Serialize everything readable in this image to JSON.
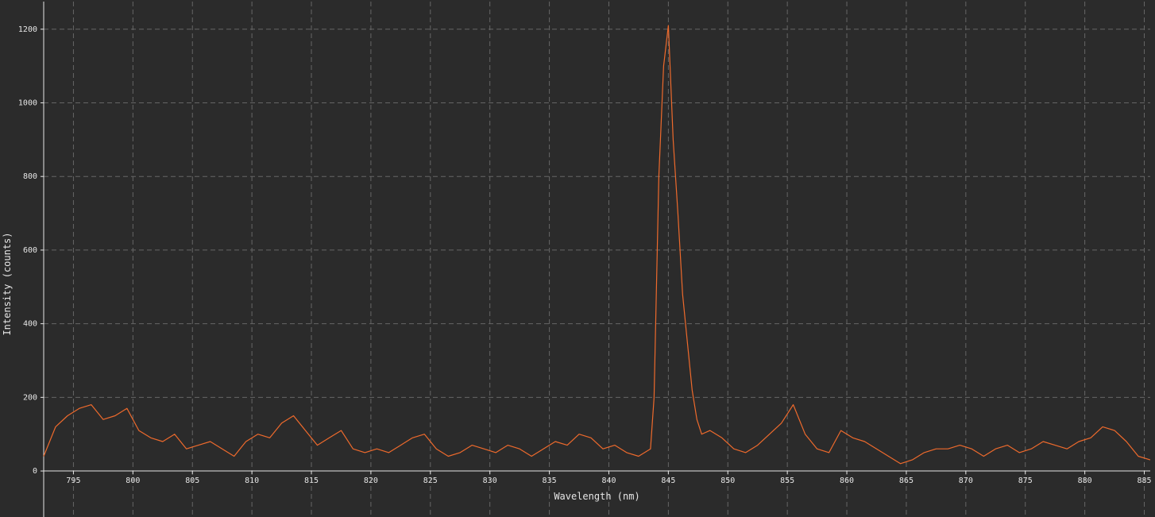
{
  "chart_data": {
    "type": "line",
    "title": "",
    "xlabel": "Wavelength (nm)",
    "ylabel": "Intensity (counts)",
    "xlim": [
      792.5,
      885.5
    ],
    "ylim": [
      -125,
      1275
    ],
    "grid": true,
    "colors": {
      "background": "#2b2b2b",
      "series": "#ee6a2c",
      "grid": "#666666",
      "axis": "#e6e6e6"
    },
    "x_ticks": [
      795,
      800,
      805,
      810,
      815,
      820,
      825,
      830,
      835,
      840,
      845,
      850,
      855,
      860,
      865,
      870,
      875,
      880,
      885
    ],
    "x_tick_labels": [
      "795",
      "800",
      "805",
      "810",
      "815",
      "820",
      "825",
      "830",
      "835",
      "840",
      "845",
      "850",
      "855",
      "860",
      "865",
      "870",
      "875",
      "880",
      "885"
    ],
    "y_ticks": [
      0,
      200,
      400,
      600,
      800,
      1000,
      1200
    ],
    "y_tick_labels": [
      "0",
      "200",
      "400",
      "600",
      "800",
      "1000",
      "1200"
    ],
    "series": [
      {
        "x": [
          792.5,
          793.5,
          794.5,
          795.5,
          796.5,
          797.5,
          798.5,
          799.5,
          800.5,
          801.5,
          802.5,
          803.5,
          804.5,
          805.5,
          806.5,
          807.5,
          808.5,
          809.5,
          810.5,
          811.5,
          812.5,
          813.5,
          814.5,
          815.5,
          816.5,
          817.5,
          818.5,
          819.5,
          820.5,
          821.5,
          822.5,
          823.5,
          824.5,
          825.5,
          826.5,
          827.5,
          828.5,
          829.5,
          830.5,
          831.5,
          832.5,
          833.5,
          834.5,
          835.5,
          836.5,
          837.5,
          838.5,
          839.5,
          840.5,
          841.5,
          842.5,
          843.5,
          843.8,
          844.2,
          844.6,
          845.0,
          845.4,
          845.8,
          846.2,
          846.6,
          847.0,
          847.4,
          847.8,
          848.5,
          849.5,
          850.5,
          851.5,
          852.5,
          853.5,
          854.5,
          855.5,
          856.5,
          857.5,
          858.5,
          859.5,
          860.5,
          861.5,
          862.5,
          863.5,
          864.5,
          865.5,
          866.5,
          867.5,
          868.5,
          869.5,
          870.5,
          871.5,
          872.5,
          873.5,
          874.5,
          875.5,
          876.5,
          877.5,
          878.5,
          879.5,
          880.5,
          881.5,
          882.5,
          883.5,
          884.5,
          885.5
        ],
        "y": [
          40,
          120,
          150,
          170,
          180,
          140,
          150,
          170,
          110,
          90,
          80,
          100,
          60,
          70,
          80,
          60,
          40,
          80,
          100,
          90,
          130,
          150,
          110,
          70,
          90,
          110,
          60,
          50,
          60,
          50,
          70,
          90,
          100,
          60,
          40,
          50,
          70,
          60,
          50,
          70,
          60,
          40,
          60,
          80,
          70,
          100,
          90,
          60,
          70,
          50,
          40,
          60,
          200,
          800,
          1100,
          1210,
          900,
          700,
          480,
          350,
          220,
          140,
          100,
          110,
          90,
          60,
          50,
          70,
          100,
          130,
          180,
          100,
          60,
          50,
          110,
          90,
          80,
          60,
          40,
          20,
          30,
          50,
          60,
          60,
          70,
          60,
          40,
          60,
          70,
          50,
          60,
          80,
          70,
          60,
          80,
          90,
          120,
          110,
          80,
          40,
          30
        ]
      }
    ]
  }
}
